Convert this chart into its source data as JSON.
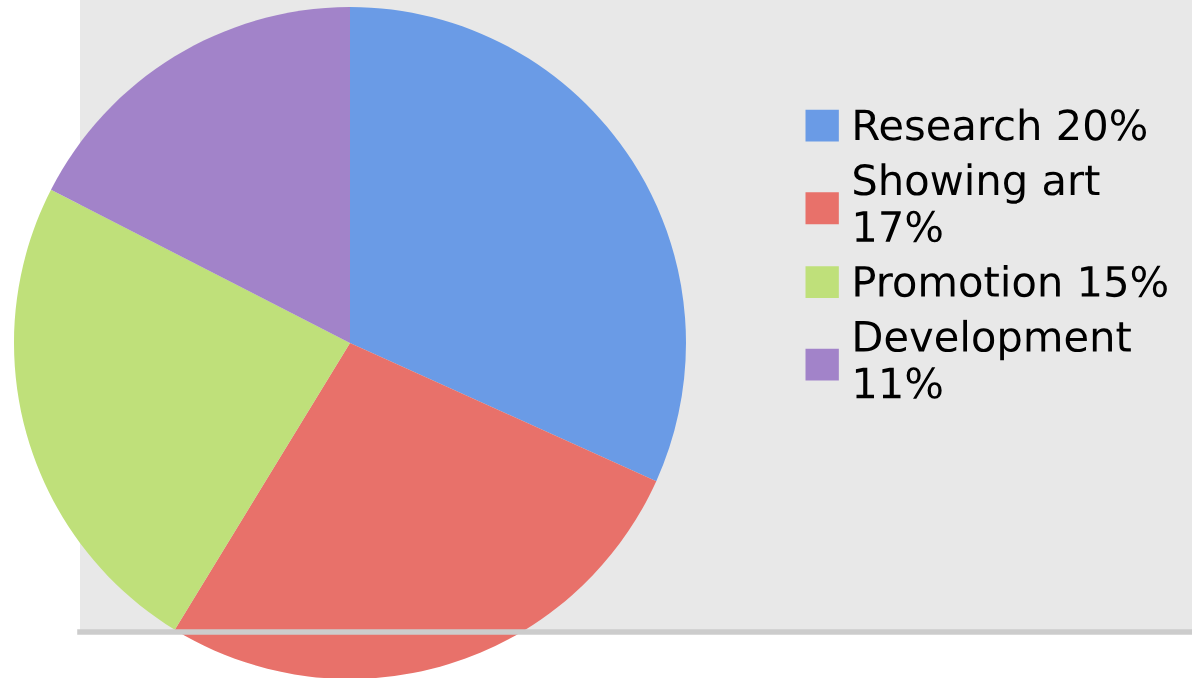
{
  "chart_data": {
    "type": "pie",
    "categories": [
      "Research 20%",
      "Showing art 17%",
      "Promotion 15%",
      "Development 11%"
    ],
    "values": [
      20,
      17,
      15,
      11
    ],
    "colors": [
      "#6a9be6",
      "#e8716a",
      "#bfe07a",
      "#a283c9"
    ],
    "legend": "right"
  }
}
